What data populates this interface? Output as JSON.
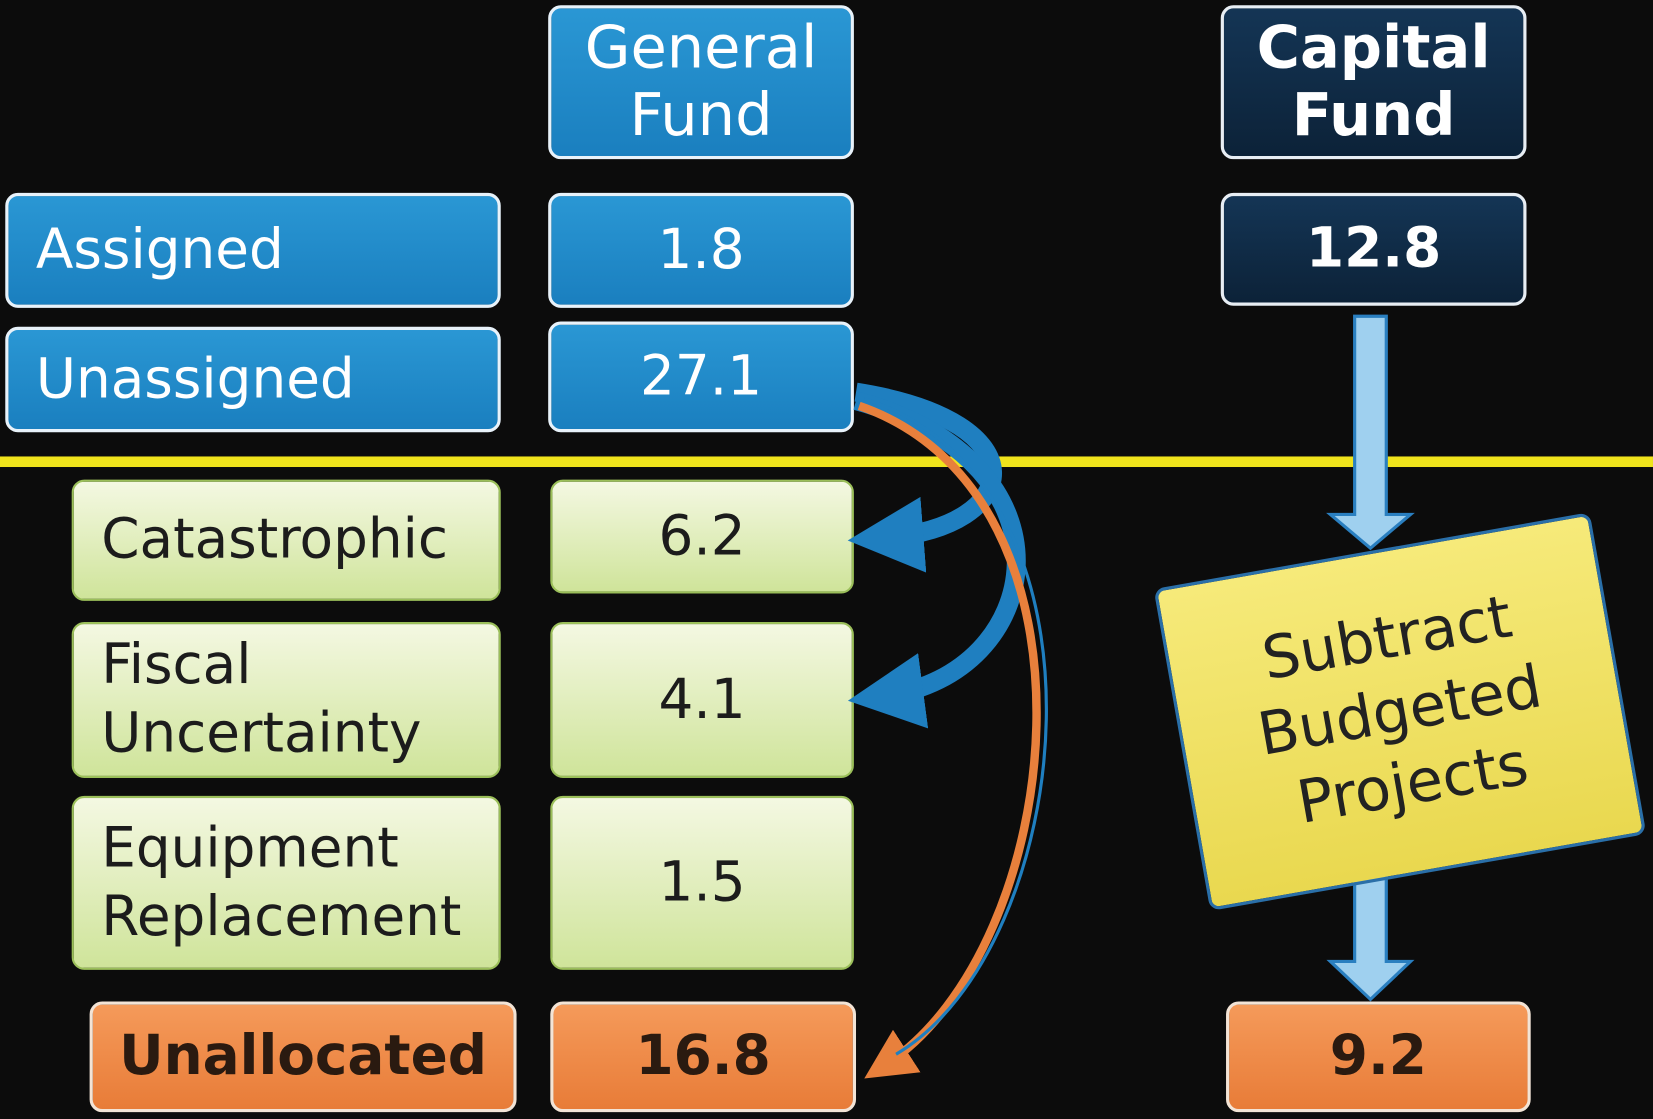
{
  "headers": {
    "general_fund": "General Fund",
    "capital_fund": "Capital Fund"
  },
  "rows": [
    {
      "label": "Assigned",
      "general_fund": 1.8,
      "capital_fund": 12.8
    },
    {
      "label": "Unassigned",
      "general_fund": 27.1
    },
    {
      "label": "Catastrophic",
      "general_fund": 6.2
    },
    {
      "label": "Fiscal Uncertainty",
      "general_fund": 4.1
    },
    {
      "label": "Equipment Replacement",
      "general_fund": 1.5
    },
    {
      "label": "Unallocated",
      "general_fund": 16.8,
      "capital_fund": 9.2
    }
  ],
  "scroll": "Subtract Budgeted Projects"
}
